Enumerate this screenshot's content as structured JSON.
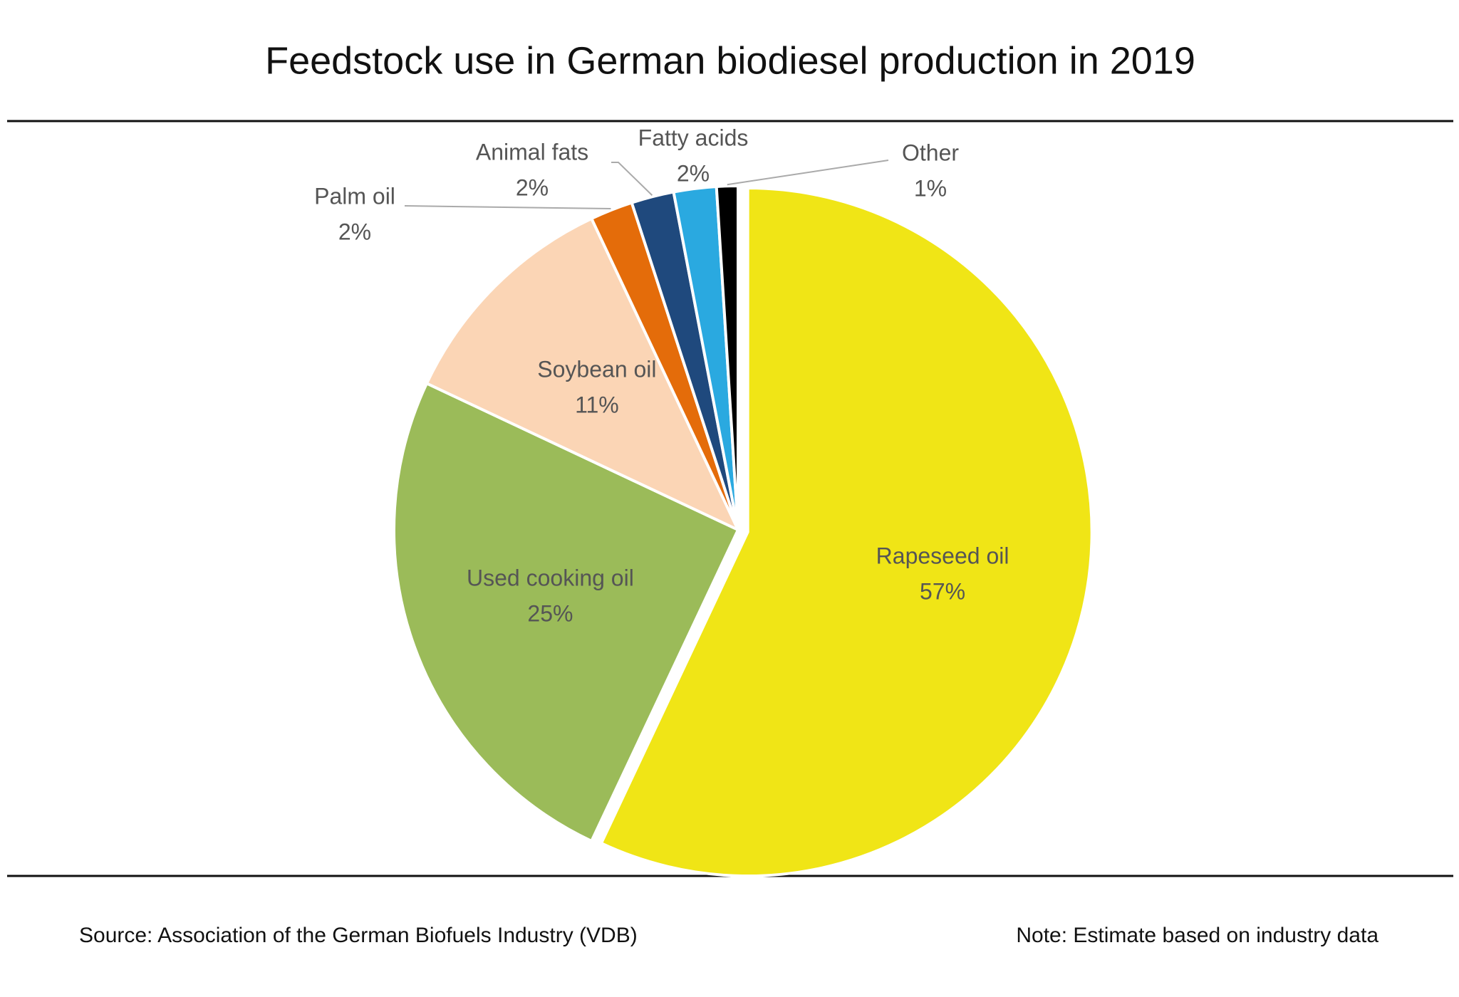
{
  "chart_data": {
    "type": "pie",
    "title": "Feedstock use in German biodiesel production in 2019",
    "categories": [
      "Rapeseed oil",
      "Used cooking oil",
      "Soybean oil",
      "Palm oil",
      "Animal fats",
      "Fatty acids",
      "Other"
    ],
    "values": [
      57,
      25,
      11,
      2,
      2,
      2,
      1
    ],
    "value_labels": [
      "57%",
      "25%",
      "11%",
      "2%",
      "2%",
      "2%",
      "1%"
    ],
    "colors": [
      "#f0e516",
      "#9bbb59",
      "#fbd5b5",
      "#e46c0a",
      "#1f497d",
      "#2aa9e0",
      "#000000"
    ],
    "source": "Source: Association of the German Biofuels Industry (VDB)",
    "note": "Note: Estimate based on industry data"
  }
}
